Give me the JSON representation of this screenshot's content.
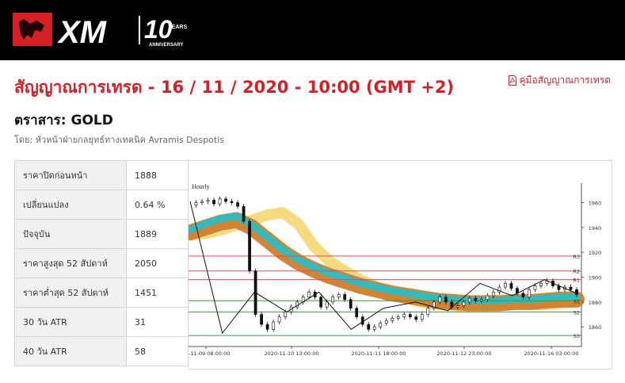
{
  "brand": {
    "logo_text": "XM",
    "anniversary_number": "10",
    "anniversary_years": "YEARS",
    "anniversary_label": "ANNIVERSARY",
    "colors": {
      "header_bg": "#000000",
      "accent": "#d51f26"
    }
  },
  "page": {
    "title": "สัญญาณการเทรด - 16 / 11 / 2020 - 10:00 (GMT +2)",
    "guide_link": "คู่มือสัญญาณการเทรด",
    "guide_icon": "pdf-icon",
    "instrument": "ตราสาร: GOLD",
    "author": "โดย: หัวหน้าฝ่ายกลยุทธ์ทางเทคนิค Avramis Despotis"
  },
  "stats": [
    {
      "label": "ราคาปิดก่อนหน้า",
      "value": "1888"
    },
    {
      "label": "เปลี่ยนแปลง",
      "value": "0.64 %"
    },
    {
      "label": "ปัจจุบัน",
      "value": "1889"
    },
    {
      "label": "ราคาสูงสุด 52 สัปดาห์",
      "value": "2050"
    },
    {
      "label": "ราคาต่ำสุด 52 สัปดาห์",
      "value": "1451"
    },
    {
      "label": "30 วัน ATR",
      "value": "31"
    },
    {
      "label": "40 วัน ATR",
      "value": "58"
    }
  ],
  "chart_data": {
    "type": "line",
    "title": "Hourly",
    "ylim": [
      1848,
      1968
    ],
    "y_ticks": [
      1860,
      1880,
      1900,
      1920,
      1940,
      1960
    ],
    "x_ticks": [
      "20-11-09 08:00:00",
      "2020-11-10 13:00:00",
      "2020-11-11 18:00:00",
      "2020-11-12 23:00:00",
      "2020-11-16 03:00:00"
    ],
    "levels": [
      {
        "name": "R3",
        "value": 1917,
        "color": "#e05050"
      },
      {
        "name": "R2",
        "value": 1905,
        "color": "#e05050"
      },
      {
        "name": "R1",
        "value": 1898,
        "color": "#e05050"
      },
      {
        "name": "S1",
        "value": 1881,
        "color": "#3c9a3c"
      },
      {
        "name": "S2",
        "value": 1872,
        "color": "#3c9a3c"
      },
      {
        "name": "S3",
        "value": 1853,
        "color": "#3c9a3c"
      }
    ],
    "price": [
      1958,
      1960,
      1961,
      1962,
      1959,
      1963,
      1961,
      1960,
      1957,
      1945,
      1905,
      1870,
      1862,
      1858,
      1864,
      1868,
      1872,
      1876,
      1880,
      1884,
      1888,
      1884,
      1876,
      1880,
      1884,
      1886,
      1882,
      1875,
      1868,
      1862,
      1858,
      1860,
      1863,
      1865,
      1867,
      1868,
      1870,
      1868,
      1866,
      1870,
      1875,
      1880,
      1884,
      1880,
      1876,
      1877,
      1880,
      1883,
      1881,
      1882,
      1885,
      1888,
      1892,
      1895,
      1891,
      1887,
      1884,
      1890,
      1893,
      1895,
      1897,
      1893,
      1890,
      1892,
      1890,
      1886
    ],
    "zigzag": [
      1961,
      1855,
      1888,
      1872,
      1888,
      1858,
      1875,
      1880,
      1873,
      1895,
      1885,
      1898,
      1887
    ],
    "bands": [
      {
        "name": "orange",
        "color": "#d07d2c",
        "values": [
          1936,
          1940,
          1944,
          1946,
          1940,
          1930,
          1920,
          1912,
          1906,
          1901,
          1897,
          1893,
          1890,
          1887,
          1885,
          1883,
          1881,
          1880,
          1879,
          1879,
          1879,
          1880,
          1880,
          1881,
          1882,
          1882
        ]
      },
      {
        "name": "teal",
        "color": "#2bbcc4",
        "values": [
          1938,
          1943,
          1947,
          1949,
          1942,
          1932,
          1922,
          1914,
          1908,
          1903,
          1899,
          1895,
          1892,
          1889,
          1887,
          1885,
          1883,
          1882,
          1881,
          1881,
          1881,
          1882,
          1882,
          1883,
          1884,
          1884
        ]
      },
      {
        "name": "yellow",
        "color": "#f5d56a",
        "values": [
          1934,
          1935,
          1938,
          1942,
          1946,
          1950,
          1952,
          1943,
          1925,
          1913,
          1905,
          1898,
          1892,
          1887,
          1883,
          1880,
          1878,
          1877,
          1876,
          1876,
          1877,
          1878,
          1878,
          1878,
          1879,
          1880
        ]
      }
    ]
  }
}
